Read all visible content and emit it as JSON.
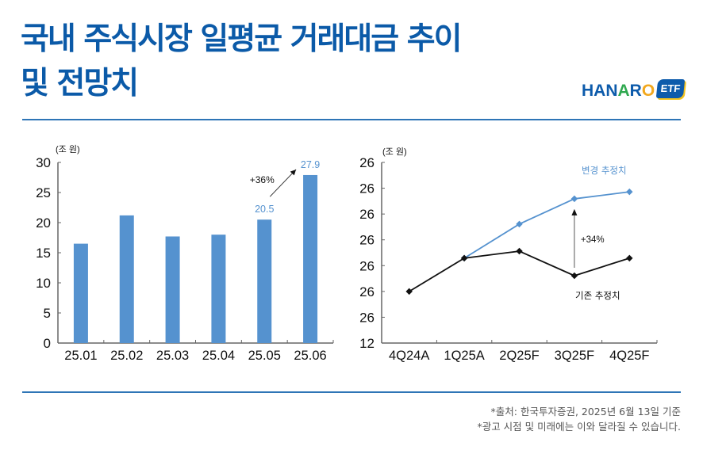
{
  "title": {
    "line1": "국내 주식시장 일평균 거래대금 추이",
    "line2": "및 전망치",
    "color": "#0b5aa8"
  },
  "logo": {
    "parts": [
      "HAN",
      "A",
      "R",
      "O"
    ],
    "badge": "ETF",
    "text": "HANARO ETF"
  },
  "divider_color": "#2e75b6",
  "chart_data": [
    {
      "type": "bar",
      "unit_label": "(조 원)",
      "categories": [
        "25.01",
        "25.02",
        "25.03",
        "25.04",
        "25.05",
        "25.06"
      ],
      "values": [
        16.5,
        21.2,
        17.7,
        18.0,
        20.5,
        27.9
      ],
      "ylim": [
        0,
        30
      ],
      "yticks": [
        "0",
        "5",
        "10",
        "15",
        "20",
        "25",
        "30"
      ],
      "data_labels": [
        {
          "category": "25.05",
          "text": "20.5"
        },
        {
          "category": "25.06",
          "text": "27.9"
        }
      ],
      "annotation": {
        "text": "+36%",
        "from": "25.05",
        "to": "25.06"
      },
      "bar_color": "#5592cf",
      "label_color": "#5592cf",
      "grid": false
    },
    {
      "type": "line",
      "unit_label": "(조 원)",
      "categories": [
        "4Q24A",
        "1Q25A",
        "2Q25F",
        "3Q25F",
        "4Q25F"
      ],
      "ytick_labels": [
        "12",
        "26",
        "26",
        "26",
        "26",
        "26",
        "26",
        "26"
      ],
      "ylim_tick_units": [
        0,
        7
      ],
      "series": [
        {
          "name": "기존 추정치",
          "color": "#111111",
          "values": [
            2.0,
            3.29,
            3.56,
            2.61,
            3.29
          ]
        },
        {
          "name": "변경 추정치",
          "color": "#5592cf",
          "values": [
            null,
            3.29,
            4.61,
            5.59,
            5.86
          ]
        }
      ],
      "annotation": {
        "text": "+34%",
        "category": "3Q25F"
      },
      "grid": false
    }
  ],
  "footer": {
    "source": "*출처: 한국투자증권, 2025년 6월 13일 기준",
    "disclaimer": "*광고 시점 및 미래에는 이와 달라질 수 있습니다."
  }
}
